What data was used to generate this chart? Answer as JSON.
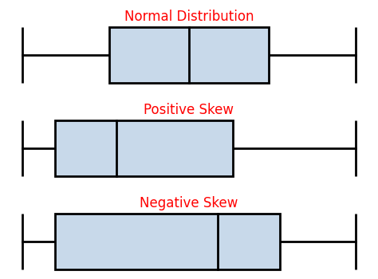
{
  "title_color": "#FF0000",
  "title_fontsize": 12,
  "background_color": "#FFFFFF",
  "box_fill_color": "#C8D9EA",
  "box_edge_color": "#000000",
  "whisker_color": "#000000",
  "line_width": 2.0,
  "plots": [
    {
      "label": "Normal Distribution",
      "Q1": 0.28,
      "median": 0.5,
      "Q3": 0.72,
      "whisker_low": 0.04,
      "whisker_high": 0.96
    },
    {
      "label": "Positive Skew",
      "Q1": 0.13,
      "median": 0.3,
      "Q3": 0.62,
      "whisker_low": 0.04,
      "whisker_high": 0.96
    },
    {
      "label": "Negative Skew",
      "Q1": 0.13,
      "median": 0.58,
      "Q3": 0.75,
      "whisker_low": 0.04,
      "whisker_high": 0.96
    }
  ]
}
